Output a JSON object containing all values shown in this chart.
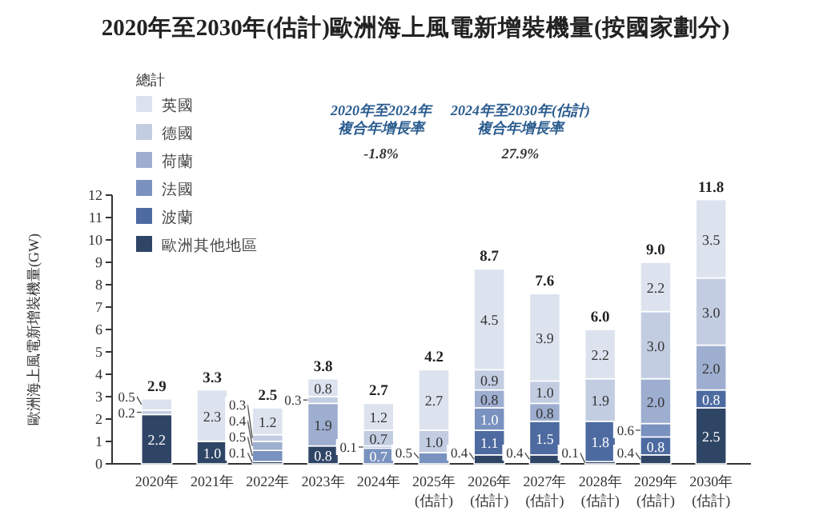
{
  "chart_data": {
    "type": "bar",
    "stacked": true,
    "title": "2020年至2030年(估計)歐洲海上風電新增裝機量(按國家劃分)",
    "ylabel": "歐洲海上風電新增裝機量(GW)",
    "legend_title": "總計",
    "legend": "top left",
    "categories": [
      "2020年",
      "2021年",
      "2022年",
      "2023年",
      "2024年",
      "2025年\n(估計)",
      "2026年\n(估計)",
      "2027年\n(估計)",
      "2028年\n(估計)",
      "2029年\n(估計)",
      "2030年\n(估計)"
    ],
    "series": [
      {
        "name": "歐洲其他地區",
        "color": "#2f4566",
        "values": [
          2.2,
          1.0,
          0.1,
          0.8,
          null,
          null,
          0.4,
          0.4,
          0.1,
          0.4,
          2.5
        ],
        "value_labels": [
          "2.2",
          "1.0",
          "0.1",
          "0.8",
          null,
          null,
          "0.4",
          "0.4",
          "0.1",
          "0.4",
          "2.5"
        ]
      },
      {
        "name": "波蘭",
        "color": "#4d6ba0",
        "values": [
          null,
          null,
          null,
          null,
          null,
          null,
          1.1,
          1.5,
          1.8,
          0.8,
          0.8
        ],
        "value_labels": [
          null,
          null,
          null,
          null,
          null,
          null,
          "1.1",
          "1.5",
          "1.8",
          "0.8",
          "0.8"
        ]
      },
      {
        "name": "法國",
        "color": "#7a92bf",
        "values": [
          null,
          null,
          0.5,
          null,
          0.7,
          0.5,
          1.0,
          null,
          null,
          0.6,
          null
        ],
        "value_labels": [
          null,
          null,
          "0.5",
          null,
          "0.7",
          "0.5",
          "1.0",
          null,
          null,
          "0.6",
          null
        ]
      },
      {
        "name": "荷蘭",
        "color": "#9eaed0",
        "values": [
          null,
          null,
          0.4,
          1.9,
          0.1,
          null,
          0.8,
          0.8,
          null,
          2.0,
          2.0
        ],
        "value_labels": [
          null,
          null,
          "0.4",
          "1.9",
          "0.1",
          null,
          "0.8",
          "0.8",
          null,
          "2.0",
          "2.0"
        ]
      },
      {
        "name": "德國",
        "color": "#c3cde2",
        "values": [
          0.2,
          null,
          0.3,
          0.3,
          0.7,
          1.0,
          0.9,
          1.0,
          1.9,
          3.0,
          3.0
        ],
        "value_labels": [
          "0.2",
          null,
          "0.3",
          "0.3",
          "0.7",
          "1.0",
          "0.9",
          "1.0",
          "1.9",
          "3.0",
          "3.0"
        ]
      },
      {
        "name": "英國",
        "color": "#dde3ee",
        "values": [
          0.5,
          2.3,
          1.2,
          0.8,
          1.2,
          2.7,
          4.5,
          3.9,
          2.2,
          2.2,
          3.5
        ],
        "value_labels": [
          "0.5",
          "2.3",
          "1.2",
          "0.8",
          "1.2",
          "2.7",
          "4.5",
          "3.9",
          "2.2",
          "2.2",
          "3.5"
        ]
      }
    ],
    "totals": [
      "2.9",
      "3.3",
      "2.5",
      "3.8",
      "2.7",
      "4.2",
      "8.7",
      "7.6",
      "6.0",
      "9.0",
      "11.8"
    ],
    "ylim": [
      0,
      12
    ],
    "yticks": [
      0,
      1,
      2,
      3,
      4,
      5,
      6,
      7,
      8,
      9,
      10,
      11,
      12
    ],
    "annotations": [
      "2020年至2024年",
      "複合年增長率",
      "-1.8%",
      "2024年至2030年(估計)",
      "複合年增長率",
      "27.9%"
    ]
  }
}
